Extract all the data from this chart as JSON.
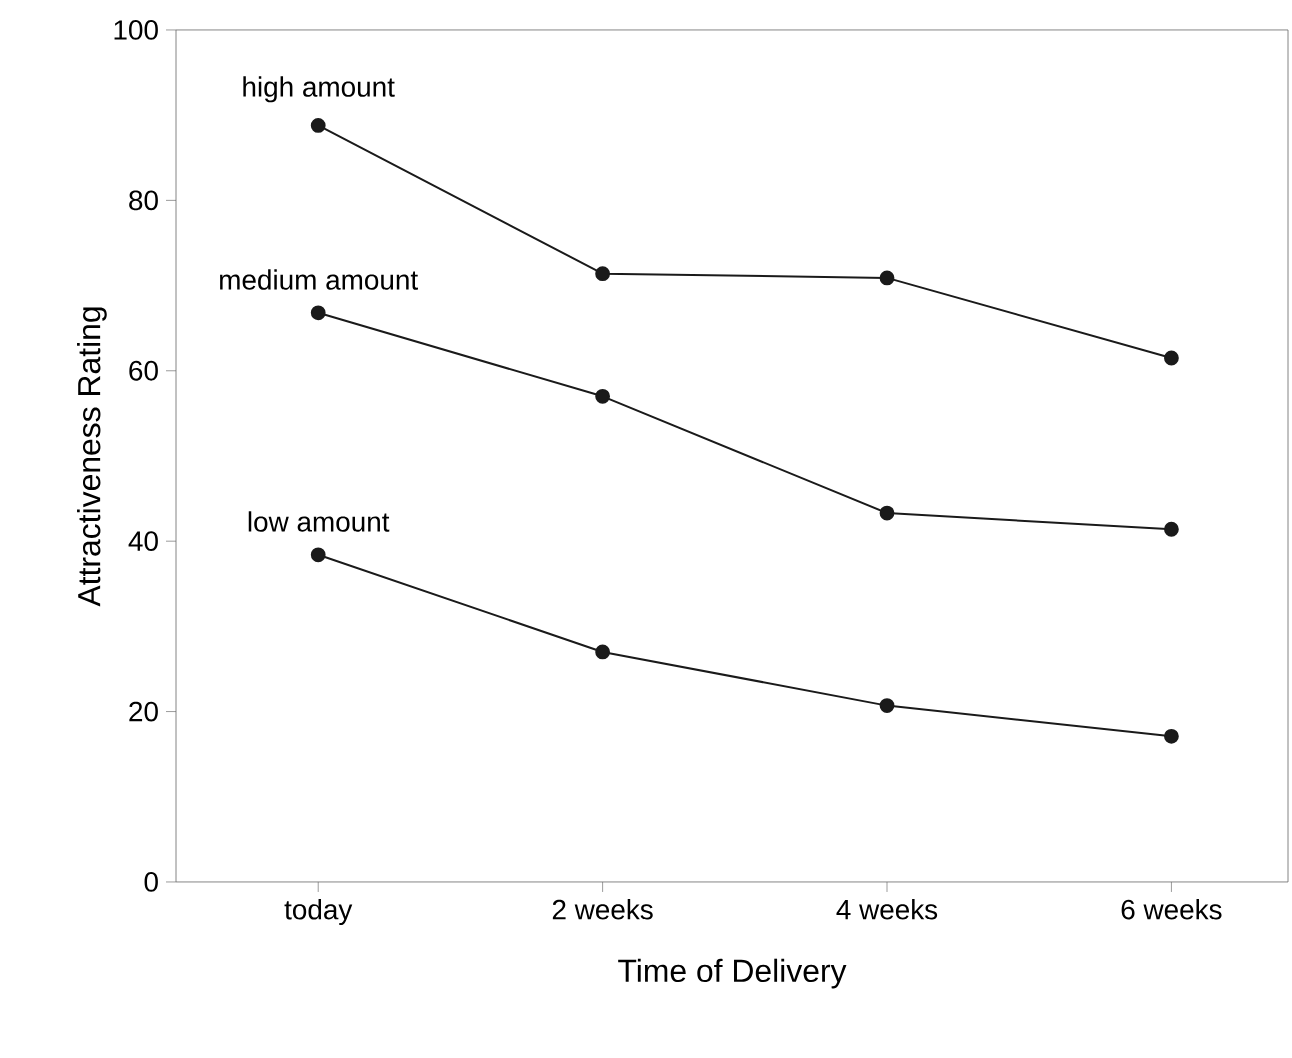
{
  "chart_data": {
    "type": "line",
    "xlabel": "Time of Delivery",
    "ylabel": "Attractiveness Rating",
    "categories": [
      "today",
      "2 weeks",
      "4 weeks",
      "6 weeks"
    ],
    "ylim": [
      0,
      100
    ],
    "yticks": [
      0,
      20,
      40,
      60,
      80,
      100
    ],
    "marker": "circle",
    "line_style": "solid",
    "grid": false,
    "legend": false,
    "series": [
      {
        "name": "high amount",
        "color": "#1a1a1a",
        "values": [
          88.8,
          71.4,
          70.9,
          61.5
        ]
      },
      {
        "name": "medium amount",
        "color": "#1a1a1a",
        "values": [
          66.8,
          57.0,
          43.3,
          41.4
        ]
      },
      {
        "name": "low amount",
        "color": "#1a1a1a",
        "values": [
          38.4,
          27.0,
          20.7,
          17.1
        ]
      }
    ]
  }
}
